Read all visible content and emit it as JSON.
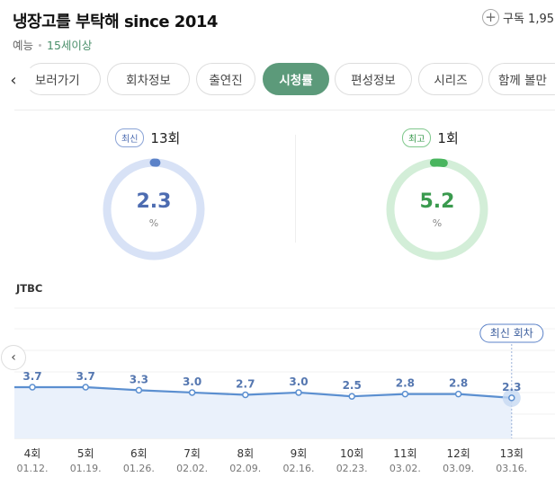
{
  "program": {
    "title": "냉장고를 부탁해 since 2014",
    "genre": "예능",
    "age_rating": "15세이상",
    "subscribe_label": "구독 1,95",
    "subscribe_icon": "plus-icon"
  },
  "tabs": {
    "prev_icon": "chevron-left-icon",
    "items": [
      {
        "label": "보러가기",
        "active": false
      },
      {
        "label": "회차정보",
        "active": false
      },
      {
        "label": "출연진",
        "active": false
      },
      {
        "label": "시청률",
        "active": true
      },
      {
        "label": "편성정보",
        "active": false
      },
      {
        "label": "시리즈",
        "active": false
      },
      {
        "label": "함께 볼만",
        "active": false
      }
    ]
  },
  "ratings": {
    "latest": {
      "badge": "최신",
      "episode": "13회",
      "value": "2.3",
      "unit": "%",
      "color": "#5b82c8",
      "track": "#d8e2f6"
    },
    "best": {
      "badge": "최고",
      "episode": "1회",
      "value": "5.2",
      "unit": "%",
      "color": "#49b55e",
      "track": "#d3eed8"
    }
  },
  "chart": {
    "channel": "JTBC",
    "latest_label": "최신 회차",
    "prev_icon": "chevron-left-icon"
  },
  "chart_data": {
    "type": "line",
    "x": [
      "4회",
      "5회",
      "6회",
      "7회",
      "8회",
      "9회",
      "10회",
      "11회",
      "12회",
      "13회"
    ],
    "dates": [
      "01.12.",
      "01.19.",
      "01.26.",
      "02.02.",
      "02.09.",
      "02.16.",
      "02.23.",
      "03.02.",
      "03.09.",
      "03.16."
    ],
    "series": [
      {
        "values": [
          3.7,
          3.7,
          3.3,
          3.0,
          2.7,
          3.0,
          2.5,
          2.8,
          2.8,
          2.3
        ],
        "color": "#5b8fd0"
      }
    ],
    "grid": true,
    "annotation": "최신 회차"
  }
}
